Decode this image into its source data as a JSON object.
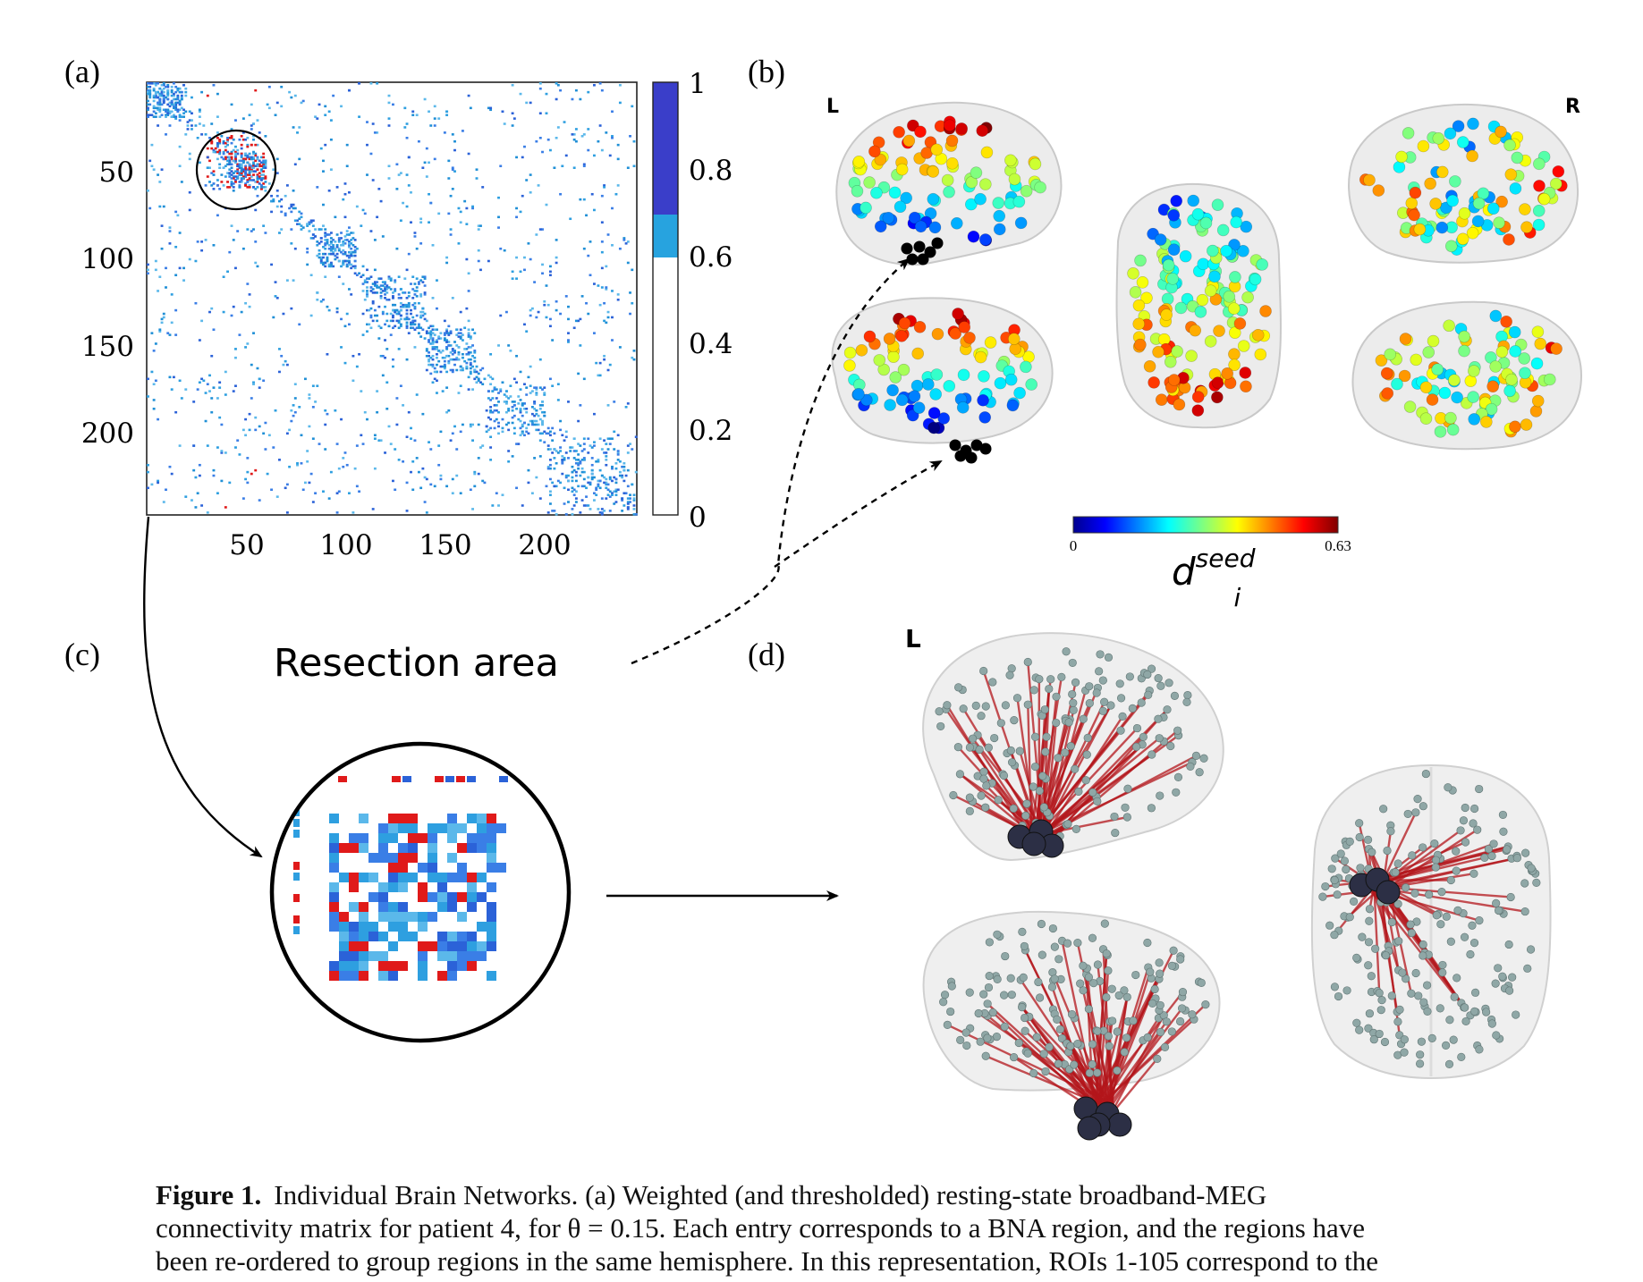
{
  "panels": {
    "a": "(a)",
    "b": "(b)",
    "c": "(c)",
    "d": "(d)"
  },
  "matrix": {
    "y_ticks": [
      "50",
      "100",
      "150",
      "200"
    ],
    "x_ticks": [
      "50",
      "100",
      "150",
      "200"
    ],
    "colorbar_ticks": [
      "1",
      "0.8",
      "0.6",
      "0.4",
      "0.2",
      "0"
    ]
  },
  "brain_b": {
    "left_label": "L",
    "right_label": "R",
    "cbar_min": "0",
    "cbar_max": "0.63",
    "cbar_title_base": "d",
    "cbar_title_sup": "seed",
    "cbar_title_sub": "i"
  },
  "resection_label": "Resection area",
  "brain_d": {
    "left_label": "L"
  },
  "caption": {
    "label": "Figure 1.",
    "line1": "Individual Brain Networks. (a) Weighted (and thresholded) resting-state broadband-MEG",
    "line2": "connectivity matrix for patient 4, for θ = 0.15. Each entry corresponds to a BNA region, and the regions have",
    "line3": "been re-ordered to group regions in the same hemisphere. In this representation, ROIs 1-105 correspond to the"
  }
}
